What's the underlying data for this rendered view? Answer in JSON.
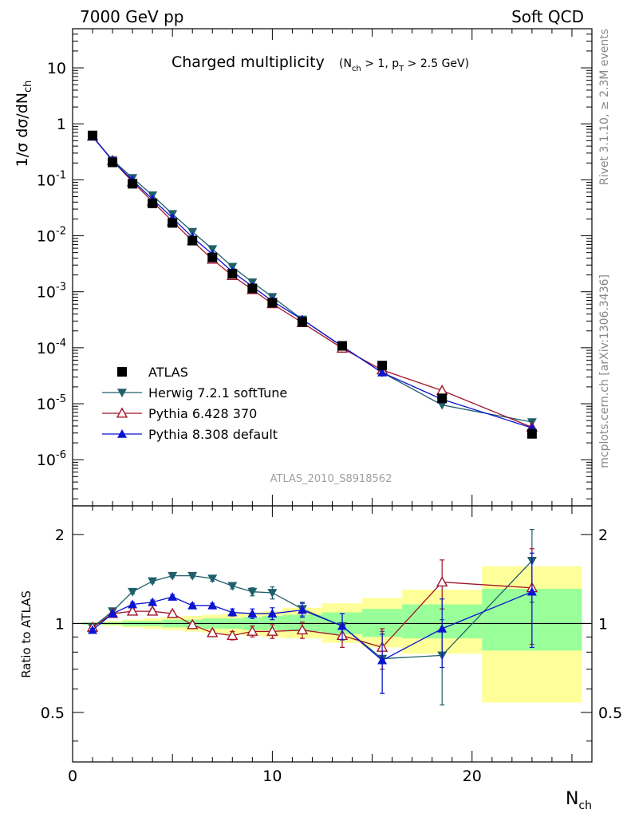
{
  "header": {
    "left": "7000 GeV pp",
    "right": "Soft QCD"
  },
  "side": {
    "rivet": "Rivet 3.1.10, ≥ 2.3M events",
    "mcplots": "mcplots.cern.ch [arXiv:1306.3436]"
  },
  "chart_data": [
    {
      "type": "scatter",
      "title": "Charged multiplicity",
      "subtitle": "(N_ch > 1, p_T > 2.5 GeV)",
      "watermark": "ATLAS_2010_S8918562",
      "ylabel": "1/σ dσ/dN_ch",
      "xlim": [
        0,
        26
      ],
      "ylim": [
        1.5e-07,
        50
      ],
      "yscale": "log",
      "ytick_labels": [
        "10",
        "1",
        "10^-1",
        "10^-2",
        "10^-3",
        "10^-4",
        "10^-5",
        "10^-6"
      ],
      "legend_position": "bottom-left",
      "series": [
        {
          "name": "ATLAS",
          "color": "#000000",
          "marker": "square",
          "x": [
            1,
            2,
            3,
            4,
            5,
            6,
            7,
            8,
            9,
            10,
            11.5,
            13.5,
            15.5,
            18.5,
            23
          ],
          "y": [
            0.62,
            0.205,
            0.085,
            0.038,
            0.017,
            0.0082,
            0.0041,
            0.0021,
            0.00115,
            0.00064,
            0.00029,
            0.000108,
            4.8e-05,
            1.25e-05,
            2.9e-06
          ]
        },
        {
          "name": "Herwig 7.2.1 softTune",
          "color": "#1f5f6b",
          "marker": "triangle-down",
          "x": [
            1,
            2,
            3,
            4,
            5,
            6,
            7,
            8,
            9,
            10,
            11.5,
            13.5,
            15.5,
            18.5,
            23
          ],
          "y": [
            0.6,
            0.225,
            0.108,
            0.053,
            0.0245,
            0.0118,
            0.0058,
            0.0028,
            0.00148,
            0.00081,
            0.00032,
            0.000105,
            3.6e-05,
            9.5e-06,
            4.7e-06
          ]
        },
        {
          "name": "Pythia 6.428 370",
          "color": "#a01428",
          "marker": "triangle-up-open",
          "x": [
            1,
            2,
            3,
            4,
            5,
            6,
            7,
            8,
            9,
            10,
            11.5,
            13.5,
            15.5,
            18.5,
            23
          ],
          "y": [
            0.6,
            0.22,
            0.092,
            0.041,
            0.0182,
            0.0081,
            0.0038,
            0.00194,
            0.00109,
            0.00061,
            0.00028,
            9.8e-05,
            4e-05,
            1.72e-05,
            3.8e-06
          ]
        },
        {
          "name": "Pythia 8.308 default",
          "color": "#0a14d2",
          "marker": "triangle-up",
          "x": [
            1,
            2,
            3,
            4,
            5,
            6,
            7,
            8,
            9,
            10,
            11.5,
            13.5,
            15.5,
            18.5,
            23
          ],
          "y": [
            0.59,
            0.22,
            0.098,
            0.045,
            0.0209,
            0.0094,
            0.0047,
            0.00229,
            0.00124,
            0.00068,
            0.00032,
            0.000106,
            3.6e-05,
            1.2e-05,
            3.7e-06
          ]
        }
      ]
    },
    {
      "type": "scatter",
      "ylabel": "Ratio to ATLAS",
      "xlabel": "N_ch",
      "xlim": [
        0,
        26
      ],
      "ylim": [
        0.34,
        2.5
      ],
      "xtick_labels": [
        "0",
        "10",
        "20"
      ],
      "ytick_labels": [
        "0.5",
        "1",
        "2"
      ],
      "bands": [
        {
          "x": [
            0.5,
            1.5,
            2.5,
            3.5,
            4.5,
            5.5,
            6.5,
            7.5,
            8.5,
            9.5,
            10.5,
            12.5,
            14.5,
            16.5,
            20.5
          ],
          "x_end": 25.5,
          "green_lo": [
            0.99,
            0.99,
            0.98,
            0.98,
            0.97,
            0.97,
            0.96,
            0.96,
            0.95,
            0.95,
            0.94,
            0.92,
            0.9,
            0.89,
            0.81
          ],
          "green_hi": [
            1.01,
            1.01,
            1.02,
            1.02,
            1.03,
            1.03,
            1.04,
            1.04,
            1.05,
            1.06,
            1.07,
            1.09,
            1.12,
            1.16,
            1.31
          ],
          "yellow_lo": [
            0.99,
            0.98,
            0.97,
            0.96,
            0.95,
            0.94,
            0.93,
            0.92,
            0.91,
            0.9,
            0.89,
            0.86,
            0.83,
            0.79,
            0.54
          ],
          "yellow_hi": [
            1.01,
            1.02,
            1.03,
            1.04,
            1.05,
            1.06,
            1.07,
            1.08,
            1.09,
            1.1,
            1.13,
            1.17,
            1.22,
            1.3,
            1.56
          ]
        }
      ],
      "series": [
        {
          "name": "Herwig 7.2.1 softTune",
          "color": "#1f5f6b",
          "marker": "triangle-down",
          "x": [
            1,
            2,
            3,
            4,
            5,
            6,
            7,
            8,
            9,
            10,
            11.5,
            13.5,
            15.5,
            18.5,
            23
          ],
          "y": [
            0.97,
            1.1,
            1.28,
            1.39,
            1.45,
            1.45,
            1.42,
            1.34,
            1.28,
            1.27,
            1.12,
            0.98,
            0.76,
            0.78,
            1.63
          ],
          "err": [
            0.01,
            0.01,
            0.02,
            0.02,
            0.02,
            0.02,
            0.03,
            0.03,
            0.04,
            0.06,
            0.06,
            0.1,
            0.18,
            0.25,
            0.45
          ]
        },
        {
          "name": "Pythia 6.428 370",
          "color": "#a01428",
          "marker": "triangle-up-open",
          "x": [
            1,
            2,
            3,
            4,
            5,
            6,
            7,
            8,
            9,
            10,
            11.5,
            13.5,
            15.5,
            18.5,
            23
          ],
          "y": [
            0.97,
            1.08,
            1.1,
            1.1,
            1.08,
            0.99,
            0.93,
            0.91,
            0.94,
            0.94,
            0.95,
            0.91,
            0.83,
            1.38,
            1.32
          ],
          "err": [
            0.01,
            0.01,
            0.02,
            0.02,
            0.02,
            0.02,
            0.02,
            0.03,
            0.04,
            0.05,
            0.06,
            0.08,
            0.13,
            0.26,
            0.47
          ]
        },
        {
          "name": "Pythia 8.308 default",
          "color": "#0a14d2",
          "marker": "triangle-up",
          "x": [
            1,
            2,
            3,
            4,
            5,
            6,
            7,
            8,
            9,
            10,
            11.5,
            13.5,
            15.5,
            18.5,
            23
          ],
          "y": [
            0.95,
            1.08,
            1.16,
            1.18,
            1.23,
            1.15,
            1.15,
            1.09,
            1.08,
            1.08,
            1.11,
            0.98,
            0.75,
            0.96,
            1.28
          ],
          "err": [
            0.01,
            0.01,
            0.02,
            0.02,
            0.02,
            0.02,
            0.02,
            0.03,
            0.04,
            0.05,
            0.06,
            0.1,
            0.17,
            0.25,
            0.45
          ]
        }
      ]
    }
  ]
}
